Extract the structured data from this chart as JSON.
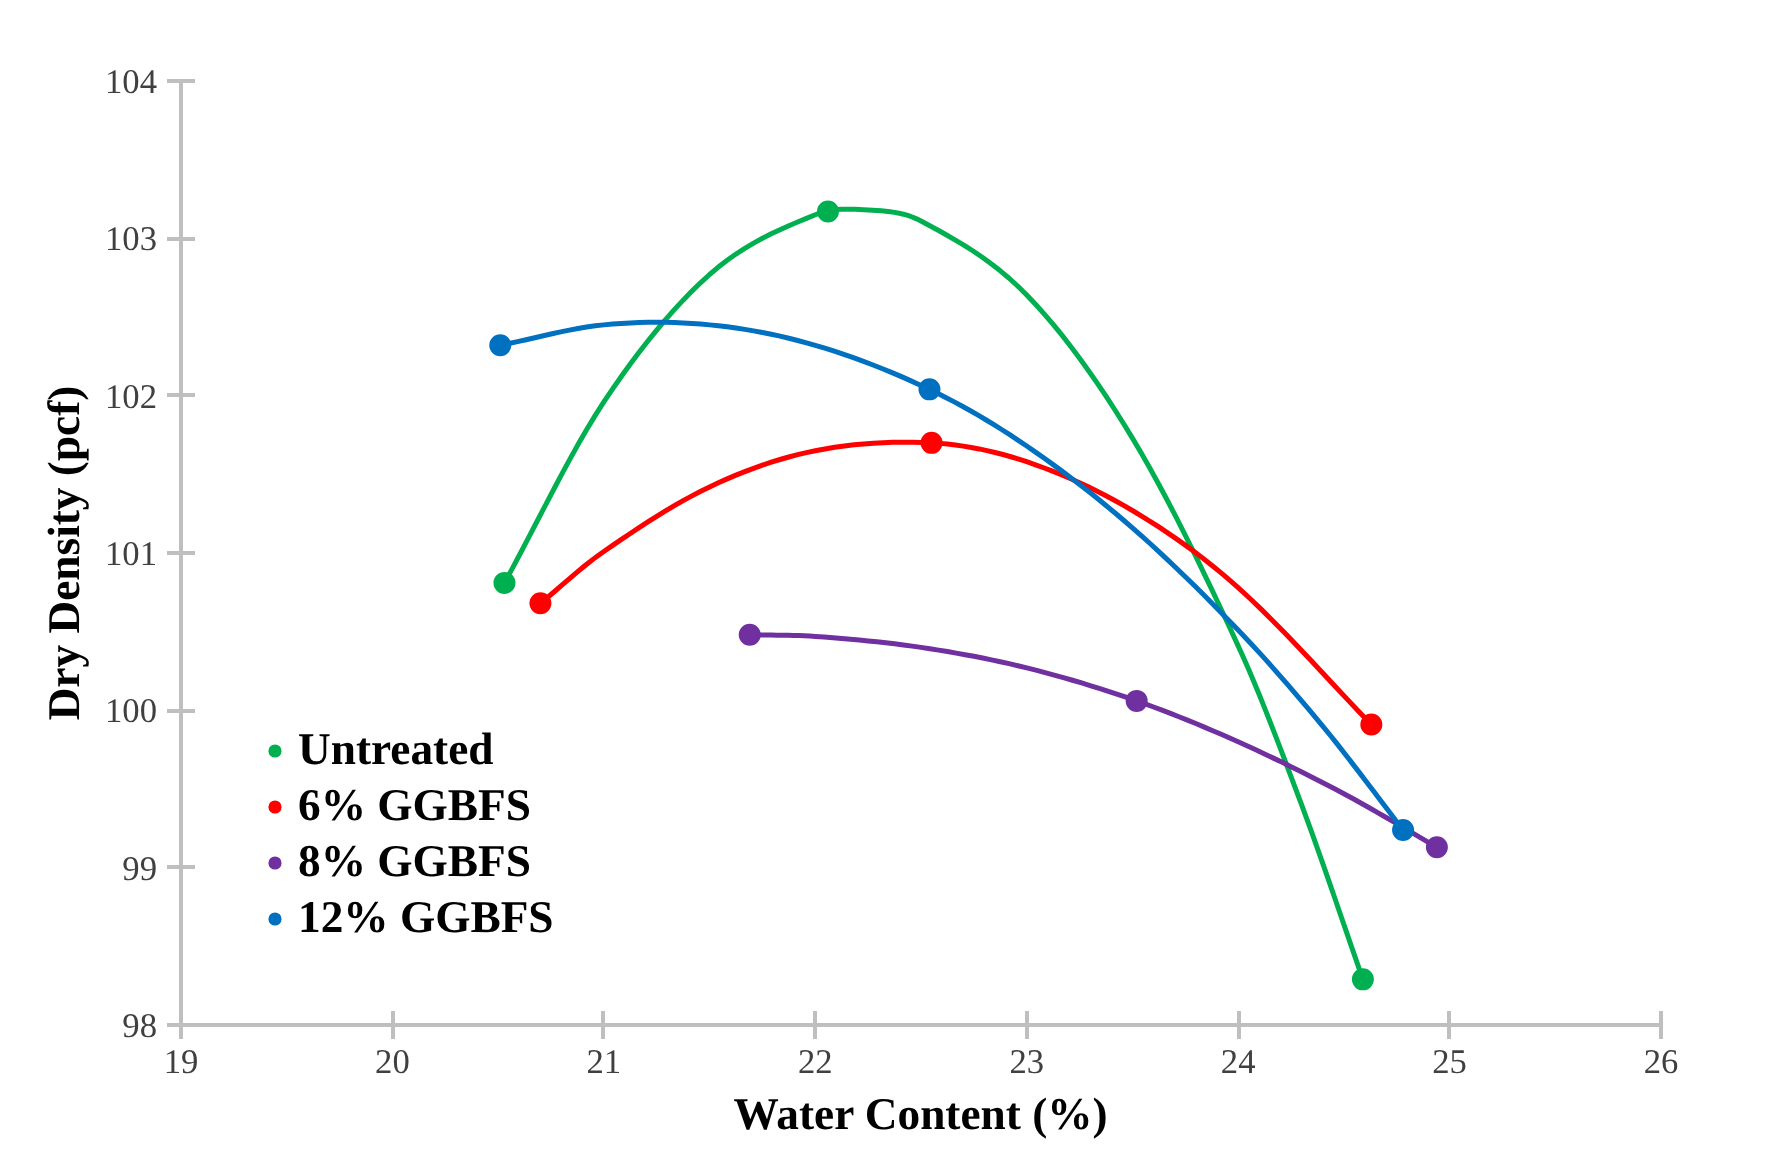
{
  "chart_data": {
    "type": "scatter",
    "xlabel": "Water Content (%)",
    "ylabel": "Dry Density (pcf)",
    "xlim": [
      19,
      26
    ],
    "ylim": [
      98,
      104
    ],
    "xticks": [
      19,
      20,
      21,
      22,
      23,
      24,
      25,
      26
    ],
    "yticks": [
      98,
      99,
      100,
      101,
      102,
      103,
      104
    ],
    "grid": false,
    "legend": "bottom left",
    "marker": "circle",
    "line_style": "solid",
    "series": [
      {
        "type": "line",
        "marker": "none",
        "color": "#00b050",
        "x": [
          20.53,
          21,
          21.5,
          22,
          22.25,
          22.5,
          23,
          23.5,
          24,
          24.3,
          24.59
        ],
        "values": [
          100.81,
          101.96,
          102.77,
          103.15,
          103.18,
          103.11,
          102.64,
          101.73,
          100.41,
          99.4,
          98.29
        ]
      },
      {
        "type": "line",
        "marker": "none",
        "color": "#ff0000",
        "x": [
          20.7,
          21,
          21.5,
          22,
          22.55,
          23,
          23.5,
          24,
          24.63
        ],
        "values": [
          100.68,
          101.01,
          101.42,
          101.65,
          101.7,
          101.58,
          101.27,
          100.78,
          99.91
        ]
      },
      {
        "type": "line",
        "marker": "none",
        "color": "#7030a0",
        "x": [
          21.69,
          22,
          22.5,
          23,
          23.52,
          24,
          24.5,
          24.94
        ],
        "values": [
          100.48,
          100.47,
          100.4,
          100.27,
          100.06,
          99.8,
          99.47,
          99.13
        ]
      },
      {
        "type": "line",
        "marker": "none",
        "color": "#0070c0",
        "x": [
          20.51,
          21,
          21.5,
          22,
          22.54,
          23,
          23.5,
          24,
          24.4,
          24.78
        ],
        "values": [
          102.32,
          102.45,
          102.45,
          102.32,
          102.04,
          101.68,
          101.16,
          100.51,
          99.9,
          99.24
        ]
      },
      {
        "name": "Untreated",
        "color": "#00b050",
        "x": [
          20.53,
          22.06,
          24.59
        ],
        "values": [
          100.81,
          103.17,
          98.29
        ]
      },
      {
        "name": "6% GGBFS",
        "color": "#ff0000",
        "x": [
          20.7,
          22.55,
          24.63
        ],
        "values": [
          100.68,
          101.7,
          99.91
        ]
      },
      {
        "name": "8% GGBFS",
        "color": "#7030a0",
        "x": [
          21.69,
          23.52,
          24.94
        ],
        "values": [
          100.48,
          100.06,
          99.13
        ]
      },
      {
        "name": "12% GGBFS",
        "color": "#0070c0",
        "x": [
          20.51,
          22.54,
          24.78
        ],
        "values": [
          102.32,
          102.04,
          99.24
        ]
      }
    ]
  }
}
